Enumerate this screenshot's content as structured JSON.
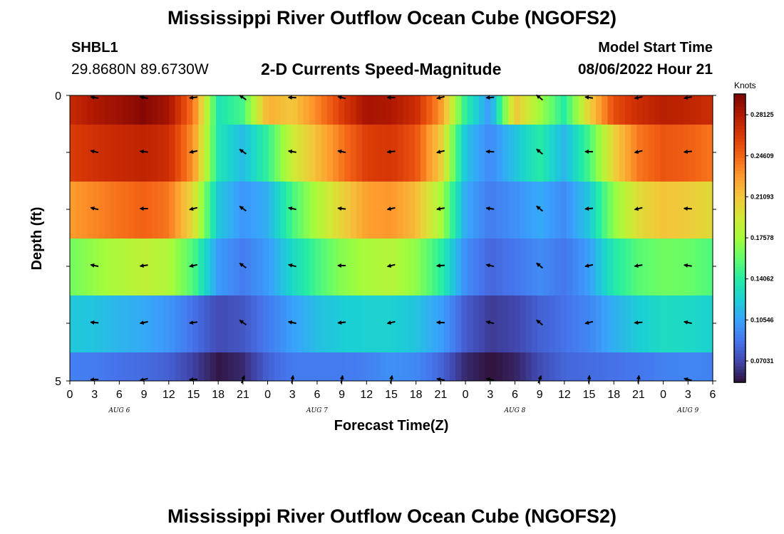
{
  "title": "Mississippi River Outflow Ocean Cube (NGOFS2)",
  "title_repeat": "Mississippi River Outflow Ocean Cube (NGOFS2)",
  "station": {
    "id": "SHBL1",
    "coordinates": "29.8680N  89.6730W"
  },
  "model_start": {
    "label": "Model Start Time",
    "value": "08/06/2022 Hour 21"
  },
  "chart_data": {
    "type": "heatmap",
    "title": "2-D Currents Speed-Magnitude",
    "xlabel": "Forecast Time(Z)",
    "ylabel": "Depth (ft)",
    "x_tick_labels": [
      "0",
      "3",
      "6",
      "9",
      "12",
      "15",
      "18",
      "21",
      "0",
      "3",
      "6",
      "9",
      "12",
      "15",
      "18",
      "21",
      "0",
      "3",
      "6",
      "9",
      "12",
      "15",
      "18",
      "21",
      "0",
      "3",
      "6"
    ],
    "y_tick_labels": [
      "0",
      "5"
    ],
    "y_range": [
      0,
      5
    ],
    "date_labels": [
      {
        "text": "AUG 6",
        "at_hour": 6
      },
      {
        "text": "AUG 7",
        "at_hour": 30
      },
      {
        "text": "AUG 8",
        "at_hour": 54
      },
      {
        "text": "AUG 9",
        "at_hour": 75
      }
    ],
    "x_range_hours": [
      0,
      78
    ],
    "colorbar": {
      "unit": "Knots",
      "min": 0.052,
      "max": 0.299,
      "ticks": [
        "0.28125",
        "0.24609",
        "0.21093",
        "0.17578",
        "0.14062",
        "0.10546",
        "0.07031"
      ],
      "colors": [
        "#30123b",
        "#4145ab",
        "#4675ed",
        "#39a2fc",
        "#1bcfd4",
        "#24eca6",
        "#61fc6c",
        "#a4fc3b",
        "#d1e834",
        "#f3c63a",
        "#fe9b2d",
        "#f36315",
        "#d93806",
        "#b11901",
        "#7a0403"
      ]
    },
    "time_hours": [
      0,
      3,
      6,
      9,
      12,
      15,
      18,
      21,
      24,
      27,
      30,
      33,
      36,
      39,
      42,
      45,
      48,
      51,
      54,
      57,
      60,
      63,
      66,
      69,
      72,
      75,
      78
    ],
    "layers": [
      {
        "depth_index": 0,
        "speed_knots": [
          0.272,
          0.282,
          0.288,
          0.295,
          0.285,
          0.24,
          0.135,
          0.15,
          0.22,
          0.21,
          0.235,
          0.262,
          0.285,
          0.282,
          0.27,
          0.23,
          0.142,
          0.1,
          0.21,
          0.175,
          0.14,
          0.205,
          0.255,
          0.27,
          0.278,
          0.275,
          0.27
        ]
      },
      {
        "depth_index": 1,
        "speed_knots": [
          0.262,
          0.268,
          0.272,
          0.275,
          0.27,
          0.23,
          0.135,
          0.115,
          0.145,
          0.19,
          0.215,
          0.24,
          0.262,
          0.265,
          0.252,
          0.208,
          0.118,
          0.095,
          0.118,
          0.14,
          0.112,
          0.15,
          0.205,
          0.24,
          0.252,
          0.248,
          0.24
        ]
      },
      {
        "depth_index": 2,
        "speed_knots": [
          0.228,
          0.235,
          0.242,
          0.247,
          0.24,
          0.2,
          0.12,
          0.1,
          0.11,
          0.15,
          0.18,
          0.205,
          0.226,
          0.23,
          0.215,
          0.178,
          0.108,
          0.09,
          0.098,
          0.108,
          0.096,
          0.12,
          0.17,
          0.2,
          0.212,
          0.208,
          0.2
        ]
      },
      {
        "depth_index": 3,
        "speed_knots": [
          0.162,
          0.172,
          0.18,
          0.186,
          0.18,
          0.152,
          0.102,
          0.09,
          0.102,
          0.128,
          0.15,
          0.168,
          0.178,
          0.182,
          0.17,
          0.142,
          0.097,
          0.082,
          0.088,
          0.096,
          0.088,
          0.104,
          0.138,
          0.155,
          0.162,
          0.16,
          0.152
        ]
      },
      {
        "depth_index": 4,
        "speed_knots": [
          0.12,
          0.118,
          0.112,
          0.108,
          0.1,
          0.086,
          0.072,
          0.076,
          0.09,
          0.104,
          0.116,
          0.122,
          0.124,
          0.124,
          0.118,
          0.104,
          0.078,
          0.066,
          0.07,
          0.08,
          0.086,
          0.094,
          0.11,
          0.122,
          0.13,
          0.128,
          0.124
        ]
      },
      {
        "depth_index": 5,
        "speed_knots": [
          0.092,
          0.09,
          0.086,
          0.084,
          0.08,
          0.068,
          0.054,
          0.06,
          0.08,
          0.09,
          0.09,
          0.09,
          0.092,
          0.098,
          0.095,
          0.082,
          0.06,
          0.052,
          0.058,
          0.072,
          0.082,
          0.084,
          0.086,
          0.088,
          0.092,
          0.094,
          0.092
        ]
      }
    ]
  }
}
